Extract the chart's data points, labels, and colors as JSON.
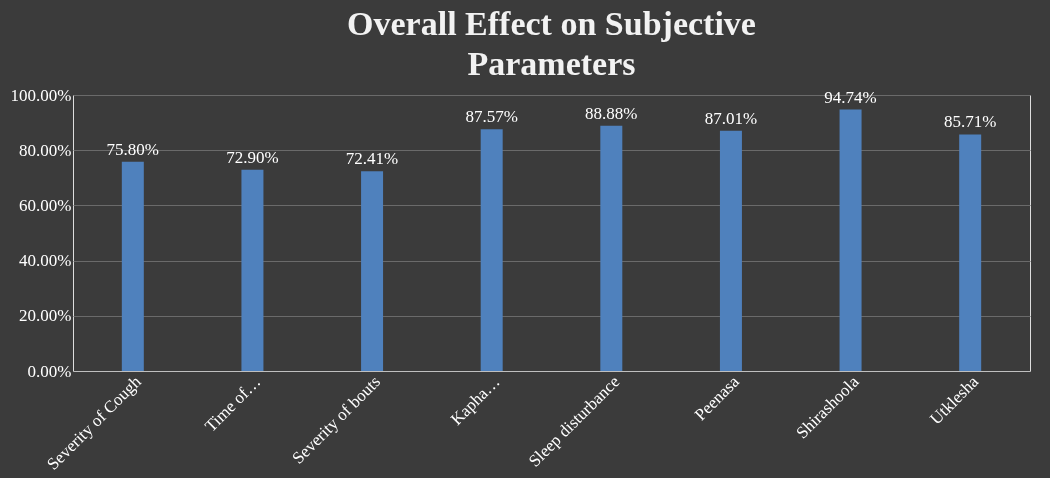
{
  "chart_data": {
    "type": "bar",
    "title": "Overall Effect on Subjective Parameters",
    "categories": [
      "Severity of Cough",
      "Time of…",
      "Severity of bouts",
      "Kapha…",
      "Sleep disturbance",
      "Peenasa",
      "Shirashoola",
      "Utklesha"
    ],
    "values": [
      75.8,
      72.9,
      72.41,
      87.57,
      88.88,
      87.01,
      94.74,
      85.71
    ],
    "value_labels": [
      "75.80%",
      "72.90%",
      "72.41%",
      "87.57%",
      "88.88%",
      "87.01%",
      "94.74%",
      "85.71%"
    ],
    "color": "#4f81bd",
    "ylim": [
      0,
      100
    ],
    "yticks": [
      {
        "value": 0,
        "label": "0.00%"
      },
      {
        "value": 20,
        "label": "20.00%"
      },
      {
        "value": 40,
        "label": "40.00%"
      },
      {
        "value": 60,
        "label": "60.00%"
      },
      {
        "value": 80,
        "label": "80.00%"
      },
      {
        "value": 100,
        "label": "100.00%"
      }
    ],
    "grid": "y"
  }
}
